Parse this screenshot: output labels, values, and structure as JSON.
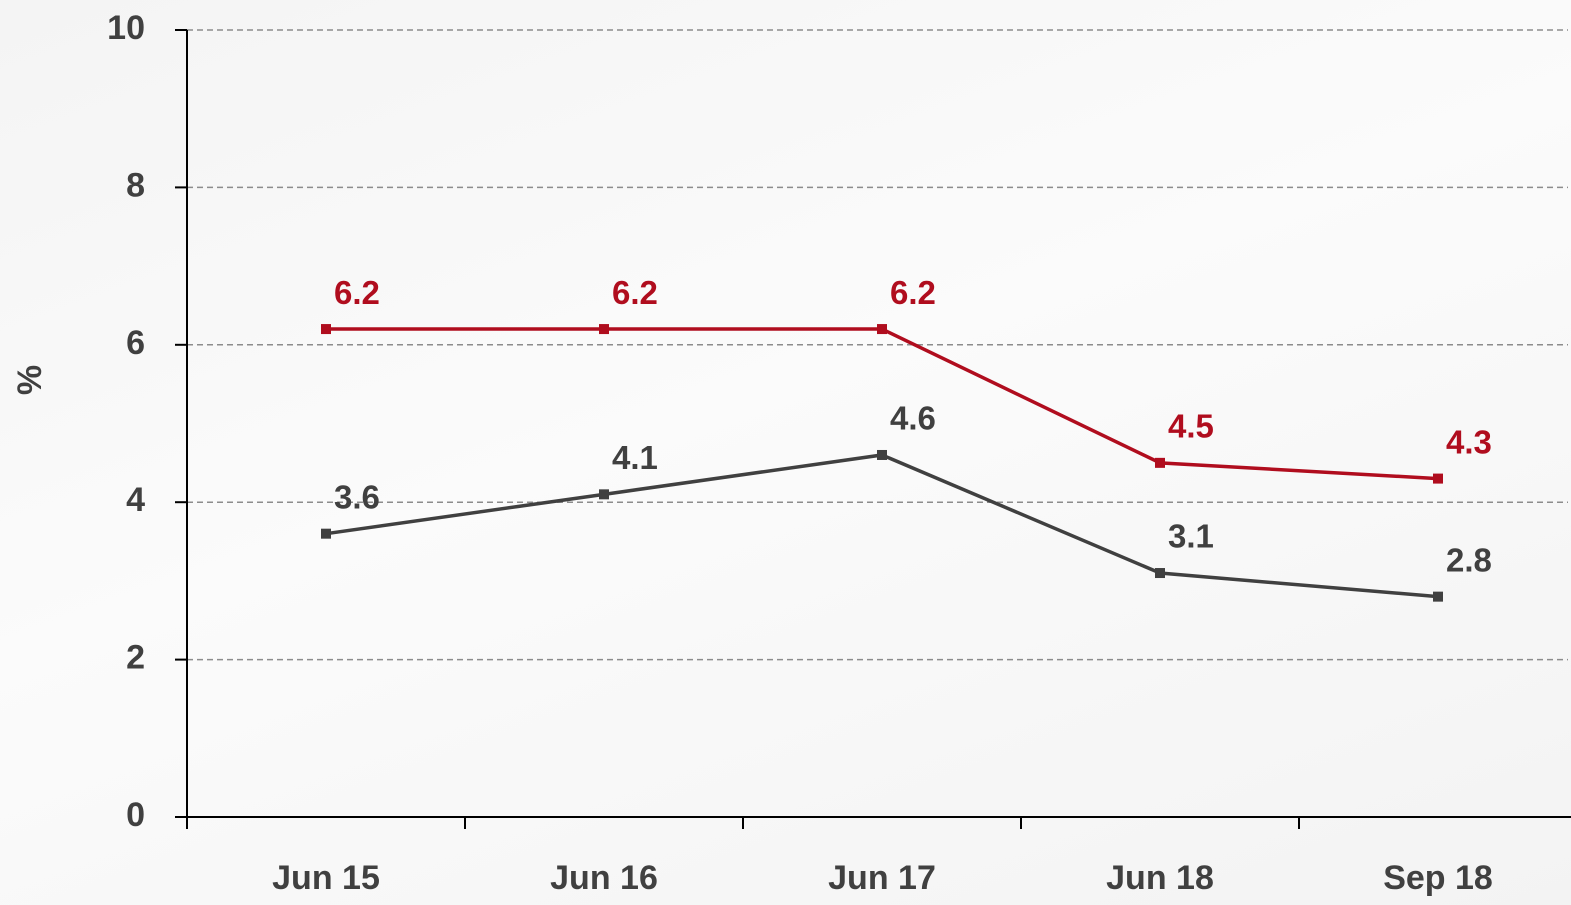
{
  "chart_data": {
    "type": "line",
    "y_label": "%",
    "categories": [
      "Jun 15",
      "Jun 16",
      "Jun 17",
      "Jun 18",
      "Sep 18"
    ],
    "series": [
      {
        "color": "#b00d1e",
        "values": [
          6.2,
          6.2,
          6.2,
          4.5,
          4.3
        ]
      },
      {
        "color": "#404040",
        "values": [
          3.6,
          4.1,
          4.6,
          3.1,
          2.8
        ]
      }
    ],
    "ylim": [
      0,
      10
    ],
    "yticks": [
      0,
      2,
      4,
      6,
      8,
      10
    ],
    "grid": true
  }
}
